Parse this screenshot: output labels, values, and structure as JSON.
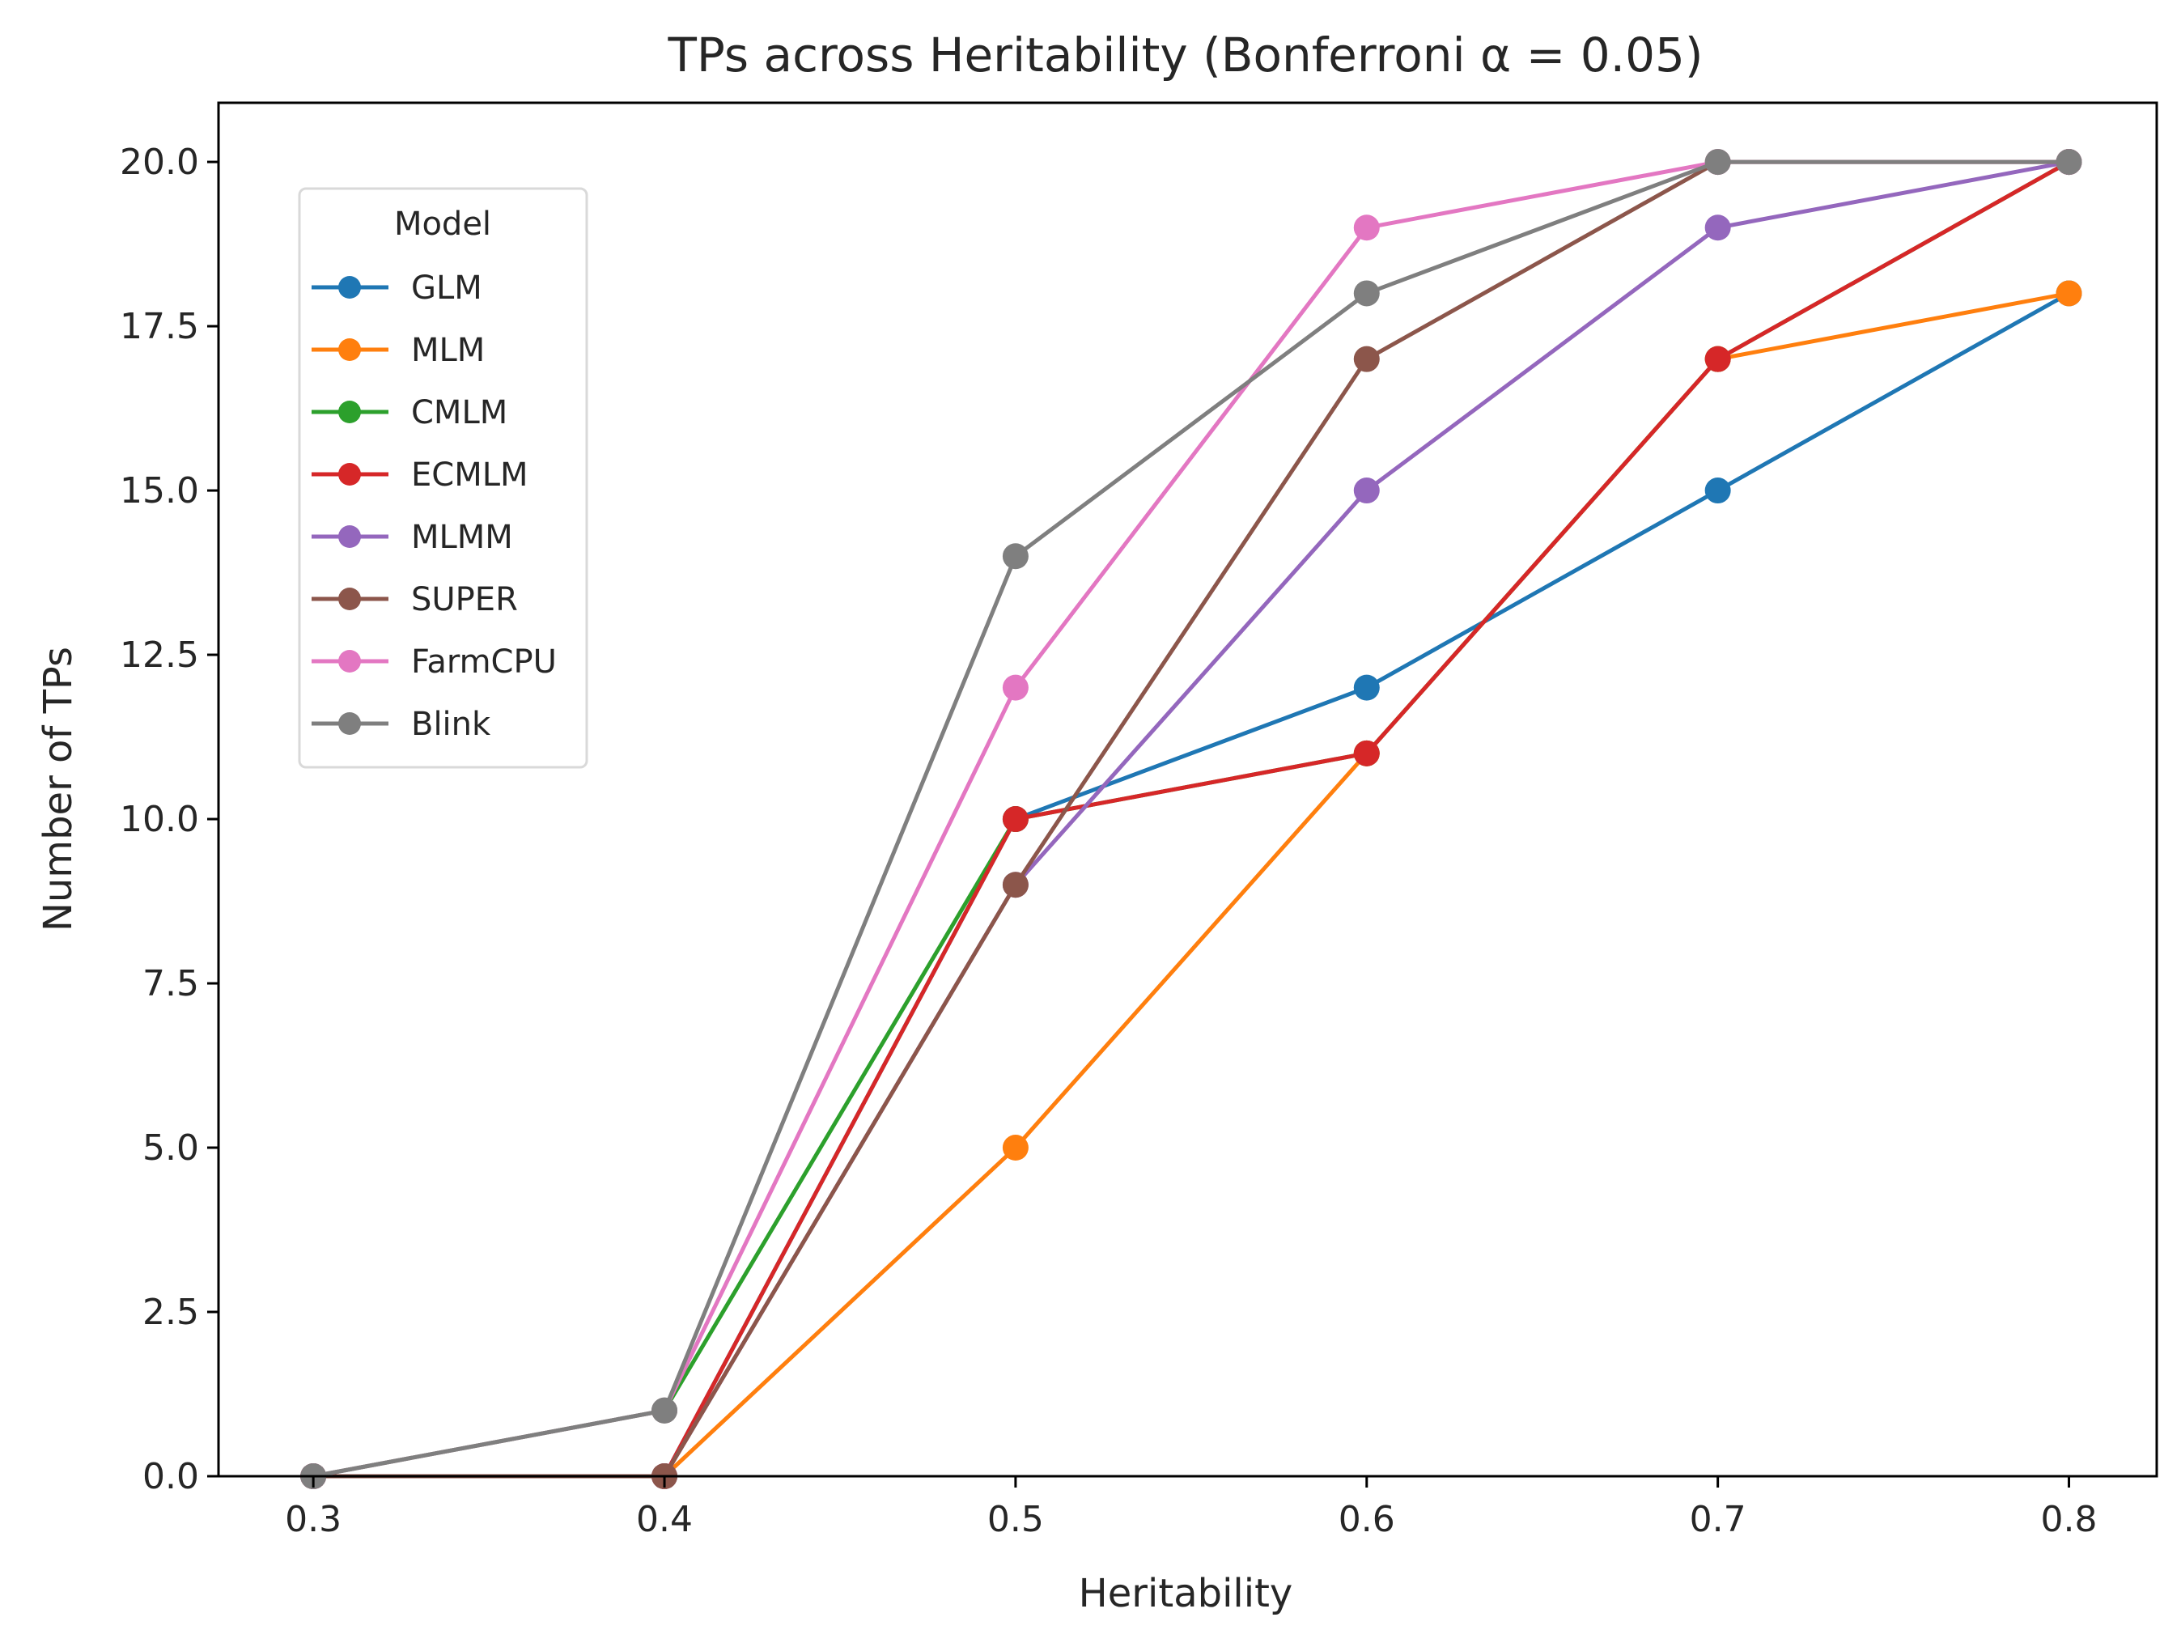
{
  "chart_data": {
    "type": "line",
    "title": "TPs across Heritability (Bonferroni α = 0.05)",
    "xlabel": "Heritability",
    "ylabel": "Number of TPs",
    "x": [
      0.3,
      0.4,
      0.5,
      0.6,
      0.7,
      0.8
    ],
    "x_ticks": [
      "0.3",
      "0.4",
      "0.5",
      "0.6",
      "0.7",
      "0.8"
    ],
    "y_ticks": [
      "0.0",
      "2.5",
      "5.0",
      "7.5",
      "10.0",
      "12.5",
      "15.0",
      "17.5",
      "20.0"
    ],
    "xlim": [
      0.273,
      0.825
    ],
    "ylim": [
      0,
      20.9
    ],
    "grid": false,
    "legend": {
      "title": "Model",
      "placement": "upper-left"
    },
    "series": [
      {
        "name": "GLM",
        "color": "#1f77b4",
        "values": [
          0,
          0,
          10,
          12,
          15,
          18
        ]
      },
      {
        "name": "MLM",
        "color": "#ff7f0e",
        "values": [
          0,
          0,
          5,
          11,
          17,
          18
        ]
      },
      {
        "name": "CMLM",
        "color": "#2ca02c",
        "values": [
          0,
          1,
          10,
          11,
          17,
          20
        ]
      },
      {
        "name": "ECMLM",
        "color": "#d62728",
        "values": [
          0,
          0,
          10,
          11,
          17,
          20
        ]
      },
      {
        "name": "MLMM",
        "color": "#9467bd",
        "values": [
          0,
          0,
          9,
          15,
          19,
          20
        ]
      },
      {
        "name": "SUPER",
        "color": "#8c564b",
        "values": [
          0,
          0,
          9,
          17,
          20,
          20
        ]
      },
      {
        "name": "FarmCPU",
        "color": "#e377c2",
        "values": [
          0,
          1,
          12,
          19,
          20,
          20
        ]
      },
      {
        "name": "Blink",
        "color": "#7f7f7f",
        "values": [
          0,
          1,
          14,
          18,
          20,
          20
        ]
      }
    ]
  }
}
